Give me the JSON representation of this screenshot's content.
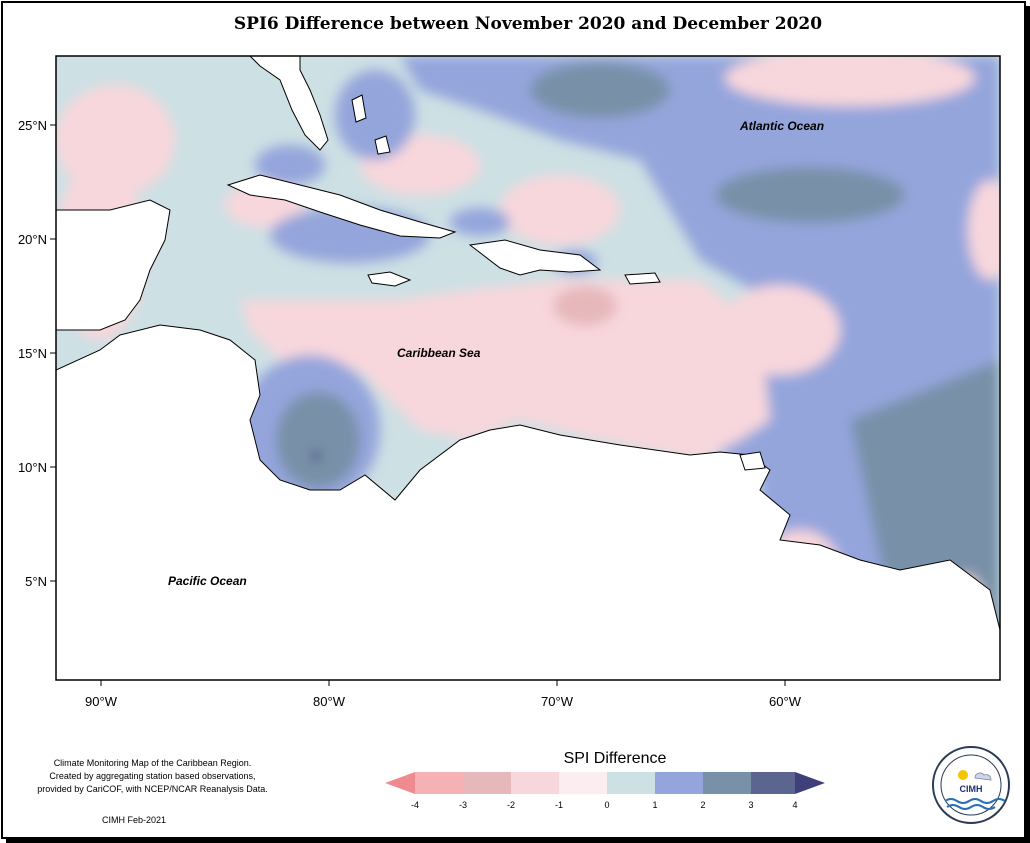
{
  "title": "SPI6 Difference between November 2020 and December 2020",
  "map": {
    "lat_ticks": [
      "25°N",
      "20°N",
      "15°N",
      "10°N",
      "5°N"
    ],
    "lon_ticks": [
      "90°W",
      "80°W",
      "70°W",
      "60°W"
    ],
    "labels": {
      "atlantic": "Atlantic Ocean",
      "caribbean": "Caribbean Sea",
      "pacific": "Pacific Ocean"
    },
    "extent": {
      "lon": [
        -92,
        -50
      ],
      "lat": [
        1,
        28
      ]
    }
  },
  "legend": {
    "title": "SPI Difference",
    "ticks": [
      "-4",
      "-3",
      "-2",
      "-1",
      "0",
      "1",
      "2",
      "3",
      "4"
    ],
    "colors": [
      "#f08a91",
      "#f4b2b6",
      "#e6b8bb",
      "#f8d7dc",
      "#fceef0",
      "#cde0e4",
      "#94a5dc",
      "#7891a8",
      "#5b6590",
      "#3f3f7a"
    ]
  },
  "credit": {
    "lines": [
      "Climate Monitoring Map of the Caribbean Region.",
      "Created by aggregating station based observations,",
      "provided by CariCOF, with NCEP/NCAR Reanalysis Data."
    ],
    "stamp": "CIMH Feb-2021"
  },
  "logo": {
    "text": "CIMH"
  }
}
